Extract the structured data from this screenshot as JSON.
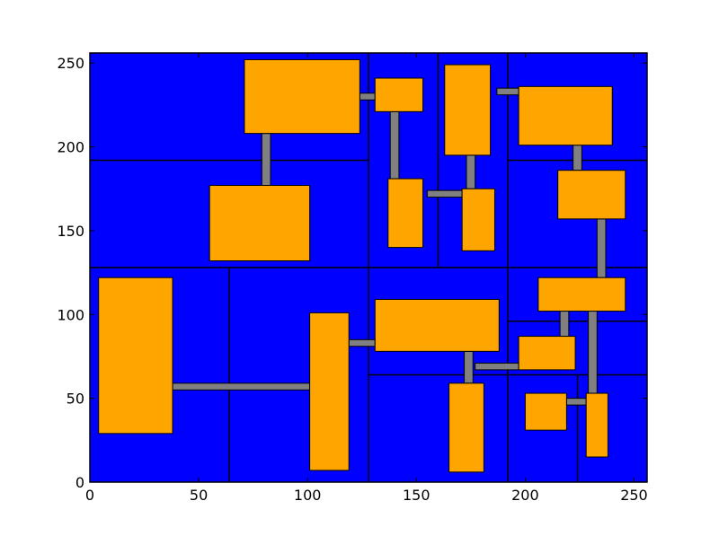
{
  "chart_data": {
    "type": "diagram",
    "title": "",
    "xlabel": "",
    "ylabel": "",
    "xlim": [
      0,
      256
    ],
    "ylim": [
      0,
      256
    ],
    "x_ticks": [
      0,
      50,
      100,
      150,
      200,
      250
    ],
    "y_ticks": [
      0,
      50,
      100,
      150,
      200,
      250
    ],
    "grid": false,
    "colors": {
      "background": "#0000ff",
      "room": "#ffa500",
      "corridor": "#808080",
      "edge": "#000000"
    },
    "partition_lines": [
      {
        "x1": 0,
        "y1": 128,
        "x2": 256,
        "y2": 128
      },
      {
        "x1": 128,
        "y1": 0,
        "x2": 128,
        "y2": 256
      },
      {
        "x1": 0,
        "y1": 192,
        "x2": 128,
        "y2": 192
      },
      {
        "x1": 64,
        "y1": 0,
        "x2": 64,
        "y2": 128
      },
      {
        "x1": 160,
        "y1": 128,
        "x2": 160,
        "y2": 256
      },
      {
        "x1": 192,
        "y1": 128,
        "x2": 192,
        "y2": 256
      },
      {
        "x1": 192,
        "y1": 192,
        "x2": 256,
        "y2": 192
      },
      {
        "x1": 128,
        "y1": 64,
        "x2": 256,
        "y2": 64
      },
      {
        "x1": 192,
        "y1": 0,
        "x2": 192,
        "y2": 128
      },
      {
        "x1": 192,
        "y1": 96,
        "x2": 256,
        "y2": 96
      },
      {
        "x1": 224,
        "y1": 0,
        "x2": 224,
        "y2": 64
      }
    ],
    "corridors": [
      {
        "x0": 124,
        "x1": 131,
        "y0": 228,
        "y1": 232
      },
      {
        "x0": 79,
        "x1": 83,
        "y0": 177,
        "y1": 208
      },
      {
        "x0": 138,
        "x1": 142,
        "y0": 181,
        "y1": 221
      },
      {
        "x0": 187,
        "x1": 197,
        "y0": 231,
        "y1": 235
      },
      {
        "x0": 155,
        "x1": 171,
        "y0": 170,
        "y1": 174
      },
      {
        "x0": 173,
        "x1": 177,
        "y0": 175,
        "y1": 195
      },
      {
        "x0": 222,
        "x1": 226,
        "y0": 186,
        "y1": 201
      },
      {
        "x0": 233,
        "x1": 237,
        "y0": 122,
        "y1": 157
      },
      {
        "x0": 38,
        "x1": 101,
        "y0": 55,
        "y1": 59
      },
      {
        "x0": 119,
        "x1": 131,
        "y0": 81,
        "y1": 85
      },
      {
        "x0": 172,
        "x1": 176,
        "y0": 59,
        "y1": 78
      },
      {
        "x0": 177,
        "x1": 197,
        "y0": 67,
        "y1": 71
      },
      {
        "x0": 216,
        "x1": 220,
        "y0": 87,
        "y1": 102
      },
      {
        "x0": 229,
        "x1": 233,
        "y0": 53,
        "y1": 102
      },
      {
        "x0": 219,
        "x1": 228,
        "y0": 46,
        "y1": 50
      }
    ],
    "rooms": [
      {
        "x0": 71,
        "x1": 124,
        "y0": 208,
        "y1": 252
      },
      {
        "x0": 131,
        "x1": 153,
        "y0": 221,
        "y1": 241
      },
      {
        "x0": 163,
        "x1": 184,
        "y0": 195,
        "y1": 249
      },
      {
        "x0": 197,
        "x1": 240,
        "y0": 201,
        "y1": 236
      },
      {
        "x0": 55,
        "x1": 101,
        "y0": 132,
        "y1": 177
      },
      {
        "x0": 137,
        "x1": 153,
        "y0": 140,
        "y1": 181
      },
      {
        "x0": 171,
        "x1": 186,
        "y0": 138,
        "y1": 175
      },
      {
        "x0": 215,
        "x1": 246,
        "y0": 157,
        "y1": 186
      },
      {
        "x0": 4,
        "x1": 38,
        "y0": 29,
        "y1": 122
      },
      {
        "x0": 101,
        "x1": 119,
        "y0": 7,
        "y1": 101
      },
      {
        "x0": 131,
        "x1": 188,
        "y0": 78,
        "y1": 109
      },
      {
        "x0": 206,
        "x1": 246,
        "y0": 102,
        "y1": 122
      },
      {
        "x0": 197,
        "x1": 223,
        "y0": 67,
        "y1": 87
      },
      {
        "x0": 165,
        "x1": 181,
        "y0": 6,
        "y1": 59
      },
      {
        "x0": 200,
        "x1": 219,
        "y0": 31,
        "y1": 53
      },
      {
        "x0": 228,
        "x1": 238,
        "y0": 15,
        "y1": 53
      }
    ]
  }
}
